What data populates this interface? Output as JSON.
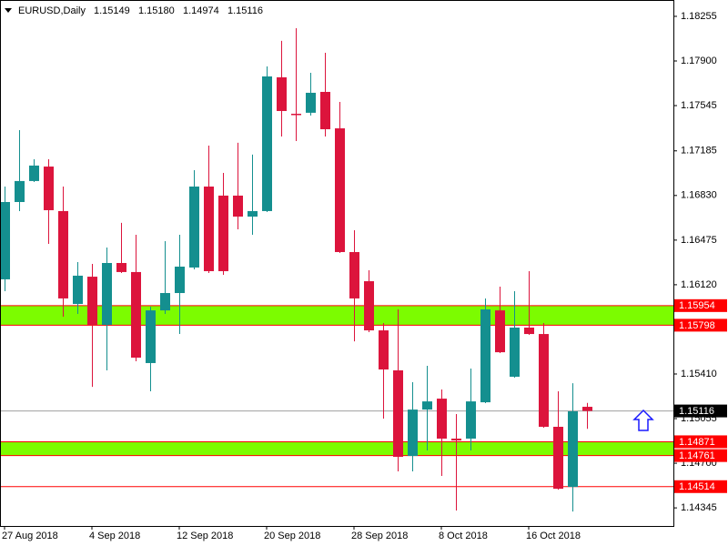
{
  "chart_data": {
    "type": "candlestick",
    "title": "EURUSD,Daily",
    "header_ohlc": [
      "1.15149",
      "1.15180",
      "1.14974",
      "1.15116"
    ],
    "categories": [
      "27 Aug 2018",
      null,
      null,
      null,
      null,
      null,
      "4 Sep 2018",
      null,
      null,
      null,
      null,
      null,
      "12 Sep 2018",
      null,
      null,
      null,
      null,
      null,
      "20 Sep 2018",
      null,
      null,
      null,
      null,
      null,
      "28 Sep 2018",
      null,
      null,
      null,
      null,
      null,
      "8 Oct 2018",
      null,
      null,
      null,
      null,
      null,
      "16 Oct 2018",
      null,
      null,
      null,
      null
    ],
    "open": [
      1.16163,
      1.16778,
      1.16945,
      1.1706,
      1.16706,
      1.15967,
      1.16184,
      1.15801,
      1.16293,
      1.16221,
      1.15497,
      1.15916,
      1.16054,
      1.16257,
      1.16901,
      1.16829,
      1.16829,
      1.16662,
      1.16706,
      1.1777,
      1.1748,
      1.17488,
      1.17654,
      1.17364,
      1.1638,
      1.16148,
      1.15757,
      1.15439,
      1.14758,
      1.15127,
      1.15214,
      1.14896,
      1.14896,
      1.15185,
      1.15916,
      1.15388,
      1.15779,
      1.15728,
      1.1499,
      1.14512,
      1.15149
    ],
    "high": [
      1.16901,
      1.1735,
      1.17118,
      1.17118,
      1.16901,
      1.163,
      1.16286,
      1.16416,
      1.16612,
      1.16517,
      1.15945,
      1.16467,
      1.16517,
      1.17031,
      1.17227,
      1.1701,
      1.17249,
      1.17155,
      1.17857,
      1.1806,
      1.18161,
      1.17806,
      1.17965,
      1.17574,
      1.16554,
      1.16235,
      1.15815,
      1.15924,
      1.15345,
      1.15475,
      1.15287,
      1.15091,
      1.15453,
      1.16011,
      1.16105,
      1.16069,
      1.16228,
      1.15815,
      1.15272,
      1.15337,
      1.1518
    ],
    "low": [
      1.16069,
      1.16706,
      1.16937,
      1.16445,
      1.15866,
      1.15888,
      1.15308,
      1.15439,
      1.16213,
      1.15511,
      1.15272,
      1.15888,
      1.15728,
      1.16242,
      1.16213,
      1.16199,
      1.16561,
      1.16517,
      1.16698,
      1.17299,
      1.17263,
      1.17466,
      1.17299,
      1.16373,
      1.1567,
      1.15743,
      1.15055,
      1.14635,
      1.14635,
      1.14802,
      1.14599,
      1.14324,
      1.14802,
      1.15178,
      1.15576,
      1.15381,
      1.15721,
      1.14983,
      1.1449,
      1.14316,
      1.14974
    ],
    "close": [
      1.16778,
      1.16945,
      1.17068,
      1.16713,
      1.16011,
      1.16192,
      1.15801,
      1.16293,
      1.16221,
      1.1554,
      1.15916,
      1.16054,
      1.16264,
      1.16901,
      1.16228,
      1.16228,
      1.16662,
      1.16706,
      1.17777,
      1.17502,
      1.17473,
      1.17647,
      1.17357,
      1.1638,
      1.16011,
      1.15757,
      1.15446,
      1.14751,
      1.15127,
      1.15192,
      1.14896,
      1.14881,
      1.15192,
      1.15924,
      1.15583,
      1.15779,
      1.15728,
      1.1499,
      1.14497,
      1.15113,
      1.15116
    ],
    "up_color": "#148f8f",
    "down_color": "#dc143c",
    "ylim": [
      1.14201,
      1.18385
    ],
    "yticks": [
      1.18255,
      {
        "value": 1.179,
        "label": "1.17900"
      },
      1.17545,
      1.17185,
      {
        "value": 1.1683,
        "label": "1.16830"
      },
      1.16475,
      {
        "value": 1.1612,
        "label": "1.16120"
      },
      {
        "value": 1.1541,
        "label": "1.15410"
      },
      1.15055,
      {
        "value": 1.147,
        "label": "1.14700"
      },
      1.14345
    ],
    "zones": [
      {
        "high": 1.15954,
        "low": 1.15798
      },
      {
        "high": 1.14871,
        "low": 1.14761
      }
    ],
    "zone_color": "#7cfc00",
    "level_lines": [
      1.14514
    ],
    "level_color": "#ff0000"
  }
}
